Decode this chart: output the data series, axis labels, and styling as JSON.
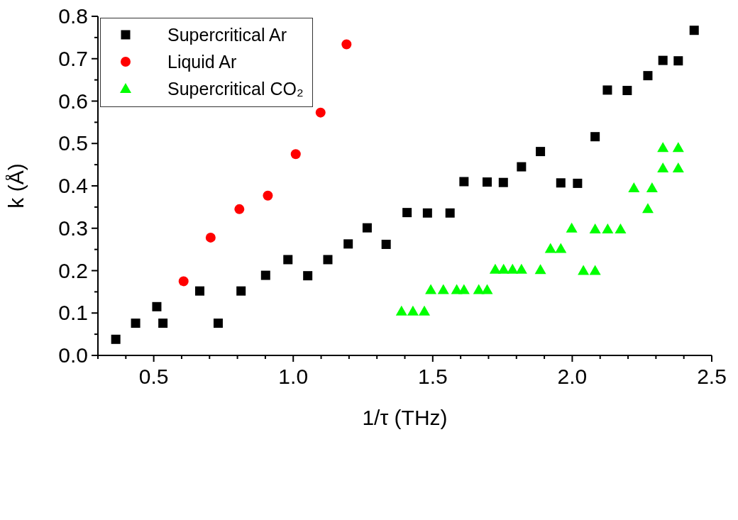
{
  "chart_data": {
    "type": "scatter",
    "xlabel": "1/τ (THz)",
    "ylabel": "k (Å)",
    "xlim": [
      0.3,
      2.5
    ],
    "ylim": [
      0,
      0.8
    ],
    "xticks": [
      {
        "value": 0.3,
        "label": null
      },
      {
        "value": 0.4,
        "label": null
      },
      0.5,
      {
        "value": 0.6,
        "label": null
      },
      {
        "value": 0.7,
        "label": null
      },
      {
        "value": 0.8,
        "label": null
      },
      {
        "value": 0.9,
        "label": null
      },
      {
        "value": 1.0,
        "label": "1.0"
      },
      {
        "value": 1.1,
        "label": null
      },
      {
        "value": 1.2,
        "label": null
      },
      {
        "value": 1.3,
        "label": null
      },
      {
        "value": 1.4,
        "label": null
      },
      1.5,
      {
        "value": 1.6,
        "label": null
      },
      {
        "value": 1.7,
        "label": null
      },
      {
        "value": 1.8,
        "label": null
      },
      {
        "value": 1.9,
        "label": null
      },
      {
        "value": 2.0,
        "label": "2.0"
      },
      {
        "value": 2.1,
        "label": null
      },
      {
        "value": 2.2,
        "label": null
      },
      {
        "value": 2.3,
        "label": null
      },
      {
        "value": 2.4,
        "label": null
      },
      2.5
    ],
    "yticks": [
      {
        "value": 0,
        "label": "0.0"
      },
      {
        "value": 0.05,
        "label": null
      },
      0.1,
      {
        "value": 0.15,
        "label": null
      },
      0.2,
      {
        "value": 0.25,
        "label": null
      },
      0.3,
      {
        "value": 0.35,
        "label": null
      },
      0.4,
      {
        "value": 0.45,
        "label": null
      },
      0.5,
      {
        "value": 0.55,
        "label": null
      },
      0.6,
      {
        "value": 0.65,
        "label": null
      },
      0.7,
      {
        "value": 0.75,
        "label": null
      },
      0.8
    ],
    "grid": false,
    "legend": "top left",
    "series": [
      {
        "name": "Supercritical Ar",
        "color": "#000000",
        "marker": "square",
        "x": [
          0.364,
          0.435,
          0.511,
          0.533,
          0.665,
          0.731,
          0.813,
          0.901,
          0.981,
          1.052,
          1.124,
          1.197,
          1.265,
          1.333,
          1.408,
          1.481,
          1.562,
          1.612,
          1.695,
          1.753,
          1.818,
          1.886,
          1.959,
          2.019,
          2.082,
          2.126,
          2.197,
          2.271,
          2.325,
          2.38,
          2.437
        ],
        "values": [
          0.038,
          0.076,
          0.115,
          0.076,
          0.152,
          0.076,
          0.152,
          0.189,
          0.226,
          0.188,
          0.226,
          0.263,
          0.301,
          0.262,
          0.337,
          0.336,
          0.336,
          0.41,
          0.409,
          0.408,
          0.445,
          0.481,
          0.407,
          0.406,
          0.516,
          0.626,
          0.625,
          0.66,
          0.696,
          0.695,
          0.767
        ]
      },
      {
        "name": "Liquid Ar",
        "color": "#ff0000",
        "marker": "circle",
        "x": [
          0.607,
          0.704,
          0.807,
          0.909,
          1.009,
          1.098,
          1.191
        ],
        "values": [
          0.175,
          0.278,
          0.345,
          0.377,
          0.475,
          0.573,
          0.734
        ]
      },
      {
        "name": "Supercritical CO₂",
        "color": "#00ff00",
        "marker": "triangle",
        "x": [
          1.388,
          1.429,
          1.47,
          1.493,
          1.538,
          1.586,
          1.612,
          1.665,
          1.695,
          1.724,
          1.754,
          1.786,
          1.818,
          1.886,
          2.04,
          2.082,
          1.922,
          1.959,
          1.998,
          2.082,
          2.127,
          2.173,
          2.271,
          2.221,
          2.286,
          2.325,
          2.38,
          2.325,
          2.38
        ],
        "values": [
          0.104,
          0.104,
          0.104,
          0.155,
          0.155,
          0.155,
          0.155,
          0.155,
          0.155,
          0.203,
          0.203,
          0.203,
          0.203,
          0.202,
          0.2,
          0.2,
          0.252,
          0.252,
          0.3,
          0.298,
          0.298,
          0.298,
          0.346,
          0.395,
          0.395,
          0.442,
          0.442,
          0.49,
          0.49
        ]
      }
    ]
  }
}
